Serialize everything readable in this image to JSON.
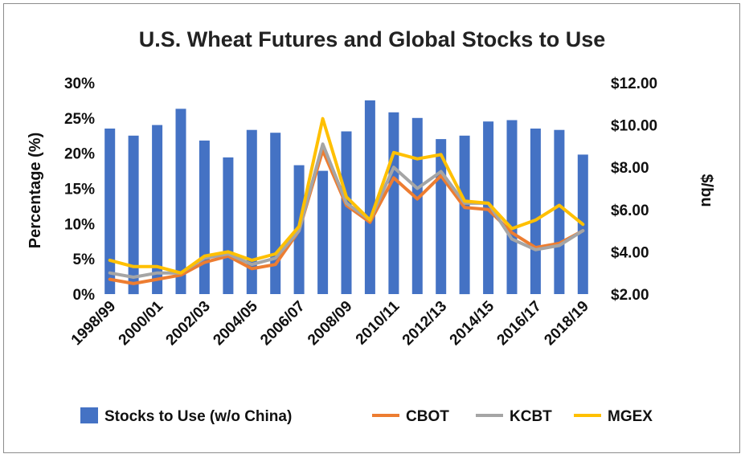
{
  "chart_data": {
    "type": "bar+line",
    "title": "U.S. Wheat Futures and Global Stocks to Use",
    "ylabel": "Percentage (%)",
    "y2label": "$/bu",
    "ylim": [
      0,
      30
    ],
    "y2lim": [
      2,
      12
    ],
    "yticks": [
      "0%",
      "5%",
      "10%",
      "15%",
      "20%",
      "25%",
      "30%"
    ],
    "y2ticks": [
      "$2.00",
      "$4.00",
      "$6.00",
      "$8.00",
      "$10.00",
      "$12.00"
    ],
    "categories": [
      "1998/99",
      "1999/00",
      "2000/01",
      "2001/02",
      "2002/03",
      "2003/04",
      "2004/05",
      "2005/06",
      "2006/07",
      "2007/08",
      "2008/09",
      "2009/10",
      "2010/11",
      "2011/12",
      "2012/13",
      "2013/14",
      "2014/15",
      "2015/16",
      "2016/17",
      "2017/18",
      "2018/19"
    ],
    "xtick_labels": [
      "1998/99",
      "2000/01",
      "2002/03",
      "2004/05",
      "2006/07",
      "2008/09",
      "2010/11",
      "2012/13",
      "2014/15",
      "2016/17",
      "2018/19"
    ],
    "grid": false,
    "legend_position": "bottom",
    "bar_series": {
      "name": "Stocks to Use (w/o China)",
      "color": "#4472c4",
      "values": [
        23.5,
        22.5,
        24.0,
        26.3,
        21.8,
        19.4,
        23.3,
        22.9,
        18.3,
        17.5,
        23.1,
        27.5,
        25.8,
        25.0,
        22.0,
        22.5,
        24.5,
        24.7,
        23.5,
        23.3,
        19.8
      ]
    },
    "line_series": [
      {
        "name": "CBOT",
        "color": "#ed7d31",
        "values": [
          2.7,
          2.5,
          2.7,
          2.9,
          3.5,
          3.8,
          3.2,
          3.4,
          5.0,
          8.8,
          6.2,
          5.4,
          7.5,
          6.5,
          7.6,
          6.1,
          6.0,
          4.9,
          4.2,
          4.4,
          5.0
        ]
      },
      {
        "name": "KCBT",
        "color": "#a5a5a5",
        "values": [
          3.0,
          2.8,
          3.0,
          3.0,
          3.7,
          3.9,
          3.4,
          3.7,
          5.0,
          9.1,
          6.3,
          5.5,
          8.0,
          7.0,
          7.8,
          6.3,
          6.3,
          4.6,
          4.1,
          4.3,
          5.0
        ]
      },
      {
        "name": "MGEX",
        "color": "#ffc000",
        "values": [
          3.6,
          3.3,
          3.3,
          3.0,
          3.8,
          4.0,
          3.6,
          3.9,
          5.2,
          10.3,
          6.6,
          5.5,
          8.7,
          8.4,
          8.6,
          6.4,
          6.3,
          5.1,
          5.5,
          6.2,
          5.3
        ]
      }
    ]
  }
}
